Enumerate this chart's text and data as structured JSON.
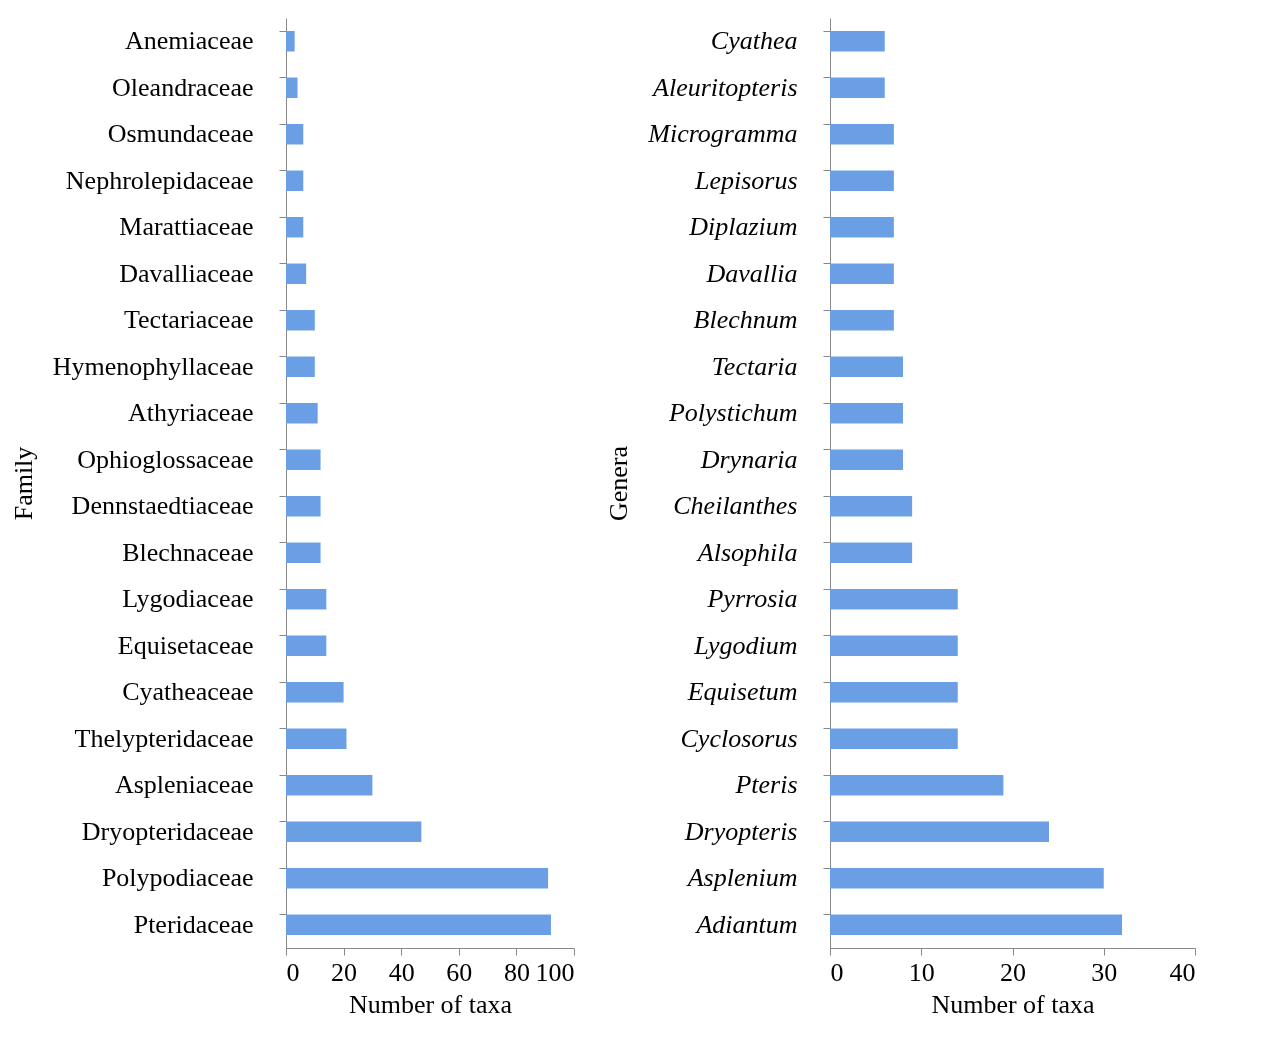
{
  "chart_data": [
    {
      "type": "bar",
      "orientation": "horizontal",
      "xlabel": "Number of taxa",
      "ylabel": "Family",
      "categories": [
        "Anemiaceae",
        "Oleandraceae",
        "Osmundaceae",
        "Nephrolepidaceae",
        "Marattiaceae",
        "Davalliaceae",
        "Tectariaceae",
        "Hymenophyllaceae",
        "Athyriaceae",
        "Ophioglossaceae",
        "Dennstaedtiaceae",
        "Blechnaceae",
        "Lygodiaceae",
        "Equisetaceae",
        "Cyatheaceae",
        "Thelypteridaceae",
        "Aspleniaceae",
        "Dryopteridaceae",
        "Polypodiaceae",
        "Pteridaceae"
      ],
      "values": [
        3,
        4,
        6,
        6,
        6,
        7,
        10,
        10,
        11,
        12,
        12,
        12,
        14,
        14,
        20,
        21,
        30,
        47,
        91,
        92
      ],
      "color": "#6a9fe6",
      "xlim": [
        0,
        100
      ],
      "xticks": [
        0,
        20,
        40,
        60,
        80,
        100
      ],
      "grid": false
    },
    {
      "type": "bar",
      "orientation": "horizontal",
      "xlabel": "Number of taxa",
      "ylabel": "Genera",
      "categories": [
        "Cyathea",
        "Aleuritopteris",
        "Microgramma",
        "Lepisorus",
        "Diplazium",
        "Davallia",
        "Blechnum",
        "Tectaria",
        "Polystichum",
        "Drynaria",
        "Cheilanthes",
        "Alsophila",
        "Pyrrosia",
        "Lygodium",
        "Equisetum",
        "Cyclosorus",
        "Pteris",
        "Dryopteris",
        "Asplenium",
        "Adiantum"
      ],
      "values": [
        6,
        6,
        7,
        7,
        7,
        7,
        7,
        8,
        8,
        8,
        9,
        9,
        14,
        14,
        14,
        14,
        19,
        24,
        30,
        32
      ],
      "color": "#6a9fe6",
      "xlim": [
        0,
        40
      ],
      "xticks": [
        0,
        10,
        20,
        30,
        40
      ],
      "grid": false
    }
  ]
}
